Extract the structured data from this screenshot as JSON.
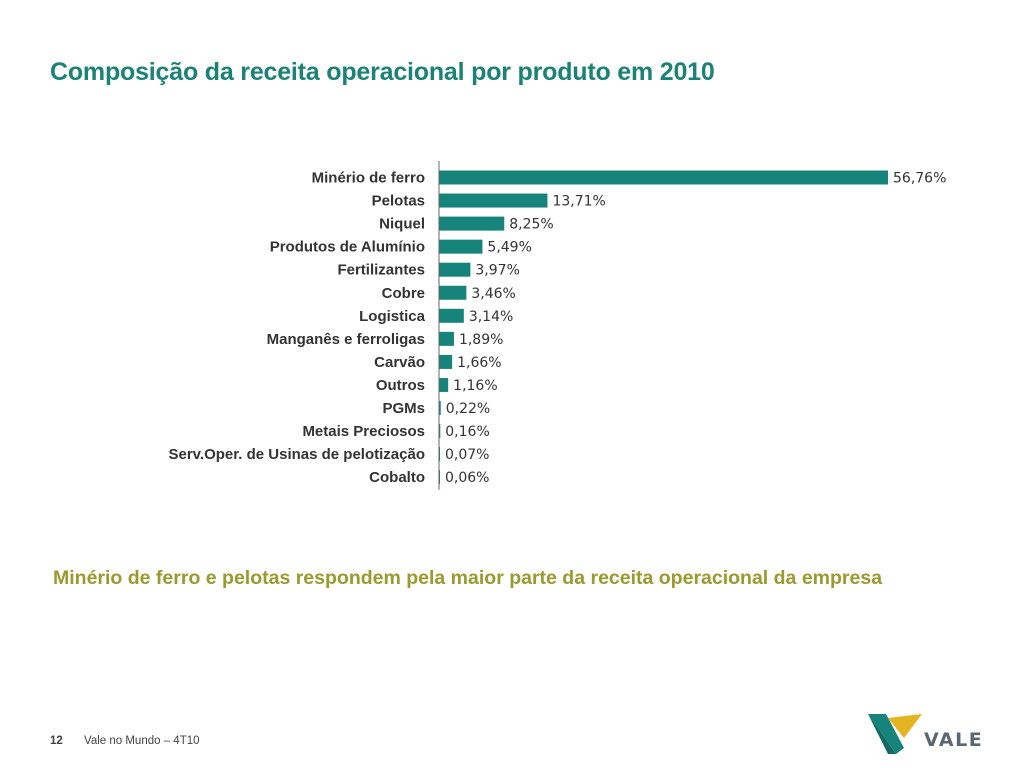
{
  "slide": {
    "title": "Composição da receita operacional por produto em 2010",
    "takeaway": "Minério de ferro e pelotas respondem pela maior parte da receita operacional da empresa",
    "page_number": "12",
    "footer_text": "Vale no Mundo – 4T10",
    "logo_text": "VALE"
  },
  "colors": {
    "bar": "#16847a",
    "title": "#1a8376",
    "takeaway": "#9a9a2e"
  },
  "chart_data": {
    "type": "bar",
    "orientation": "horizontal",
    "title": "",
    "xlabel": "",
    "ylabel": "",
    "xlim": [
      0,
      56.76
    ],
    "grid": false,
    "categories": [
      "Minério de ferro",
      "Pelotas",
      "Niquel",
      "Produtos de Alumínio",
      "Fertilizantes",
      "Cobre",
      "Logistica",
      "Manganês e ferroligas",
      "Carvão",
      "Outros",
      "PGMs",
      "Metais Preciosos",
      "Serv.Oper. de Usinas de pelotização",
      "Cobalto"
    ],
    "values": [
      56.76,
      13.71,
      8.25,
      5.49,
      3.97,
      3.46,
      3.14,
      1.89,
      1.66,
      1.16,
      0.22,
      0.16,
      0.07,
      0.06
    ],
    "value_labels": [
      "56,76%",
      "13,71%",
      "8,25%",
      "5,49%",
      "3,97%",
      "3,46%",
      "3,14%",
      "1,89%",
      "1,66%",
      "1,16%",
      "0,22%",
      "0,16%",
      "0,07%",
      "0,06%"
    ]
  }
}
